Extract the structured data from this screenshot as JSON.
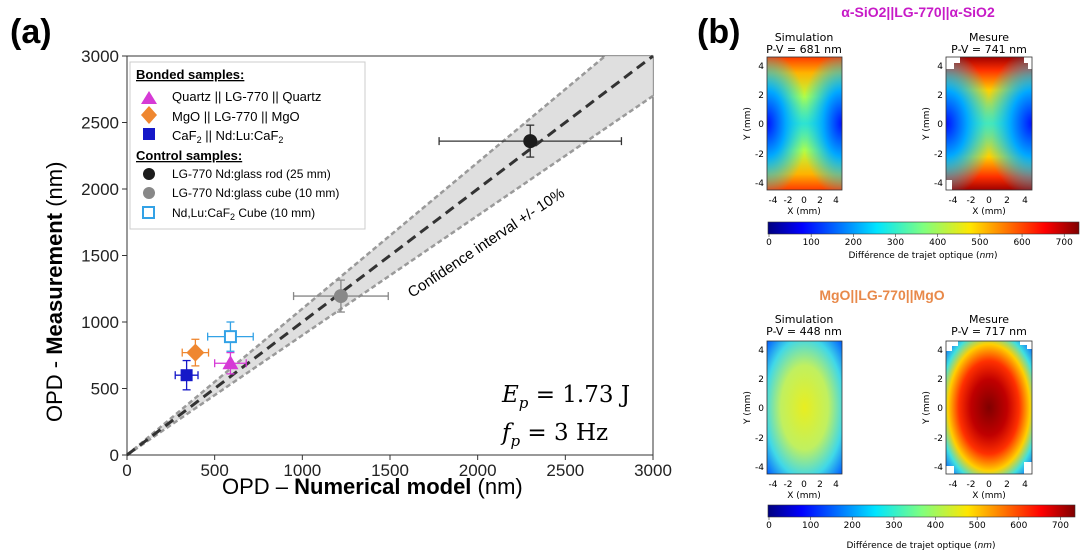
{
  "panel_a": {
    "label": "(a)",
    "xlabel_prefix": "OPD – ",
    "xlabel_bold": "Numerical  model",
    "xlabel_suffix": " (nm)",
    "ylabel_prefix": "OPD - ",
    "ylabel_bold": "Measurement",
    "ylabel_suffix": " (nm)",
    "band_label": "Confidence interval +/- 10%",
    "ep_label": "E",
    "ep_sub": "p",
    "ep_value": " = 1.73 J",
    "fp_label": "f",
    "fp_sub": "p",
    "fp_value": " = 3 Hz",
    "legend": {
      "bonded_title": "Bonded samples:",
      "control_title": "Control samples:",
      "items": [
        {
          "label": "Quartz || LG-770 || Quartz",
          "color": "#d63ad6"
        },
        {
          "label": "MgO || LG-770 || MgO",
          "color": "#ef8730"
        },
        {
          "label": "CaF2 || Nd:Lu:CaF2",
          "color": "#1518c8"
        },
        {
          "label": "LG-770 Nd:glass rod (25 mm)",
          "color": "#1c1c1c"
        },
        {
          "label": "LG-770 Nd:glass cube (10 mm)",
          "color": "#888888"
        },
        {
          "label": "Nd,Lu:CaF2 Cube (10 mm)",
          "color": "#33a2e6"
        }
      ]
    }
  },
  "chart_data": {
    "type": "scatter",
    "title": "",
    "xlabel": "OPD – Numerical model (nm)",
    "ylabel": "OPD - Measurement (nm)",
    "xlim": [
      0,
      3000
    ],
    "ylim": [
      0,
      3000
    ],
    "xticks": [
      0,
      500,
      1000,
      1500,
      2000,
      2500,
      3000
    ],
    "yticks": [
      0,
      500,
      1000,
      1500,
      2000,
      2500,
      3000
    ],
    "reference_line": "y = x",
    "confidence_band": 0.1,
    "series": [
      {
        "name": "Quartz || LG-770 || Quartz",
        "x": 590,
        "y": 690,
        "xerr": 90,
        "yerr": 80
      },
      {
        "name": "MgO || LG-770 || MgO",
        "x": 390,
        "y": 770,
        "xerr": 75,
        "yerr": 100
      },
      {
        "name": "CaF2 || Nd:Lu:CaF2",
        "x": 340,
        "y": 600,
        "xerr": 65,
        "yerr": 110
      },
      {
        "name": "LG-770 Nd:glass rod (25 mm)",
        "x": 2300,
        "y": 2360,
        "xerr": 520,
        "yerr": 120
      },
      {
        "name": "LG-770 Nd:glass cube (10 mm)",
        "x": 1220,
        "y": 1195,
        "xerr": 270,
        "yerr": 120
      },
      {
        "name": "Nd,Lu:CaF2 Cube (10 mm)",
        "x": 590,
        "y": 890,
        "xerr": 130,
        "yerr": 110
      }
    ]
  },
  "panel_b": {
    "label": "(b)",
    "top_title": "α-SiO2||LG-770||α-SiO2",
    "bottom_title": "MgO||LG-770||MgO",
    "top_sim_title": "Simulation",
    "top_sim_pv": "P-V = 681 nm",
    "top_mes_title": "Mesure",
    "top_mes_pv": "P-V = 741 nm",
    "bot_sim_title": "Simulation",
    "bot_sim_pv": "P-V = 448 nm",
    "bot_mes_title": "Mesure",
    "bot_mes_pv": "P-V = 717 nm",
    "map_xlabel": "X (mm)",
    "map_ylabel": "Y (mm)",
    "map_ticks": [
      "-4",
      "-2",
      "0",
      "2",
      "4"
    ],
    "colorbar_label": "Différence de trajet optique (",
    "colorbar_unit": "nm",
    "colorbar_close": ")",
    "colorbar_top_ticks": [
      "0",
      "100",
      "200",
      "300",
      "400",
      "500",
      "600",
      "700"
    ],
    "colorbar_bottom_ticks": [
      "0",
      "100",
      "200",
      "300",
      "400",
      "500",
      "600",
      "700"
    ],
    "colors": {
      "title_top": "#c71ac7",
      "title_bottom": "#e8894a"
    }
  }
}
